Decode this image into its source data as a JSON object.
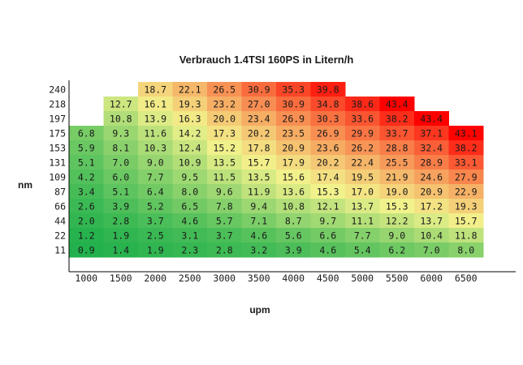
{
  "chart_data": {
    "type": "heatmap",
    "title": "Verbrauch 1.4TSI 160PS in Litern/h",
    "xlabel": "upm",
    "ylabel": "nm",
    "x": [
      "1000",
      "1500",
      "2000",
      "2500",
      "3000",
      "3500",
      "4000",
      "4500",
      "5000",
      "5500",
      "6000",
      "6500"
    ],
    "y": [
      "240",
      "218",
      "197",
      "175",
      "153",
      "131",
      "109",
      "87",
      "66",
      "44",
      "22",
      "11"
    ],
    "values": [
      [
        null,
        null,
        18.7,
        22.1,
        26.5,
        30.9,
        35.3,
        39.8,
        null,
        null,
        null,
        null
      ],
      [
        null,
        12.7,
        16.1,
        19.3,
        23.2,
        27.0,
        30.9,
        34.8,
        38.6,
        43.4,
        null,
        null
      ],
      [
        null,
        10.8,
        13.9,
        16.3,
        20.0,
        23.4,
        26.9,
        30.3,
        33.6,
        38.2,
        43.4,
        null
      ],
      [
        6.8,
        9.3,
        11.6,
        14.2,
        17.3,
        20.2,
        23.5,
        26.9,
        29.9,
        33.7,
        37.1,
        43.1
      ],
      [
        5.9,
        8.1,
        10.3,
        12.4,
        15.2,
        17.8,
        20.9,
        23.6,
        26.2,
        28.8,
        32.4,
        38.2
      ],
      [
        5.1,
        7.0,
        9.0,
        10.9,
        13.5,
        15.7,
        17.9,
        20.2,
        22.4,
        25.5,
        28.9,
        33.1
      ],
      [
        4.2,
        6.0,
        7.7,
        9.5,
        11.5,
        13.5,
        15.6,
        17.4,
        19.5,
        21.9,
        24.6,
        27.9
      ],
      [
        3.4,
        5.1,
        6.4,
        8.0,
        9.6,
        11.9,
        13.6,
        15.3,
        17.0,
        19.0,
        20.9,
        22.9
      ],
      [
        2.6,
        3.9,
        5.2,
        6.5,
        7.8,
        9.4,
        10.8,
        12.1,
        13.7,
        15.3,
        17.2,
        19.3
      ],
      [
        2.0,
        2.8,
        3.7,
        4.6,
        5.7,
        7.1,
        8.7,
        9.7,
        11.1,
        12.2,
        13.7,
        15.7
      ],
      [
        1.2,
        1.9,
        2.5,
        3.1,
        3.7,
        4.6,
        5.6,
        6.6,
        7.7,
        9.0,
        10.4,
        11.8
      ],
      [
        0.9,
        1.4,
        1.9,
        2.3,
        2.8,
        3.2,
        3.9,
        4.6,
        5.4,
        6.2,
        7.0,
        8.0
      ]
    ],
    "color_scale": {
      "low": "#22b14c",
      "mid": "#f2f28c",
      "high": "#ff0000"
    },
    "grid": false
  }
}
